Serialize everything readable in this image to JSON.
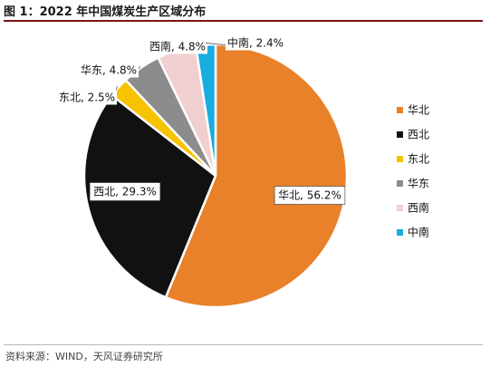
{
  "figure_label": "图 1：",
  "source": "资料来源：WIND，天风证券研究所",
  "colors": {
    "华北": "#E8812A",
    "西北": "#111111",
    "东北": "#F7C200",
    "华东": "#8C8C8C",
    "西南": "#F1CFD0",
    "中南": "#18ACE0",
    "title_rule": "#7a1414"
  },
  "chart_data": {
    "type": "pie",
    "title": "2022 年中国煤炭生产区域分布",
    "categories": [
      "华北",
      "西北",
      "东北",
      "华东",
      "西南",
      "中南"
    ],
    "values": [
      56.2,
      29.3,
      2.5,
      4.8,
      4.8,
      2.4
    ],
    "data_labels": [
      "华北, 56.2%",
      "西北, 29.3%",
      "东北, 2.5%",
      "华东, 4.8%",
      "西南, 4.8%",
      "中南, 2.4%"
    ],
    "legend_position": "right"
  }
}
